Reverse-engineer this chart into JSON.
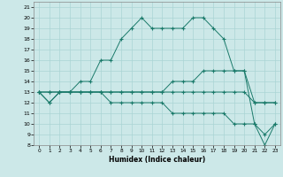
{
  "xlabel": "Humidex (Indice chaleur)",
  "xlim": [
    -0.5,
    23.5
  ],
  "ylim": [
    8,
    21.5
  ],
  "yticks": [
    8,
    9,
    10,
    11,
    12,
    13,
    14,
    15,
    16,
    17,
    18,
    19,
    20,
    21
  ],
  "xticks": [
    0,
    1,
    2,
    3,
    4,
    5,
    6,
    7,
    8,
    9,
    10,
    11,
    12,
    13,
    14,
    15,
    16,
    17,
    18,
    19,
    20,
    21,
    22,
    23
  ],
  "background_color": "#cce8e8",
  "grid_color": "#aad4d4",
  "line_color": "#1a7a6a",
  "line1": [
    13,
    12,
    13,
    13,
    14,
    14,
    16,
    16,
    18,
    19,
    20,
    19,
    19,
    19,
    19,
    20,
    20,
    19,
    18,
    15,
    15,
    10,
    8,
    10
  ],
  "line2": [
    13,
    13,
    13,
    13,
    13,
    13,
    13,
    13,
    13,
    13,
    13,
    13,
    13,
    14,
    14,
    14,
    15,
    15,
    15,
    15,
    15,
    12,
    12,
    12
  ],
  "line3": [
    13,
    13,
    13,
    13,
    13,
    13,
    13,
    13,
    13,
    13,
    13,
    13,
    13,
    13,
    13,
    13,
    13,
    13,
    13,
    13,
    13,
    12,
    12,
    12
  ],
  "line4": [
    13,
    12,
    13,
    13,
    13,
    13,
    13,
    12,
    12,
    12,
    12,
    12,
    12,
    11,
    11,
    11,
    11,
    11,
    11,
    10,
    10,
    10,
    9,
    10
  ]
}
